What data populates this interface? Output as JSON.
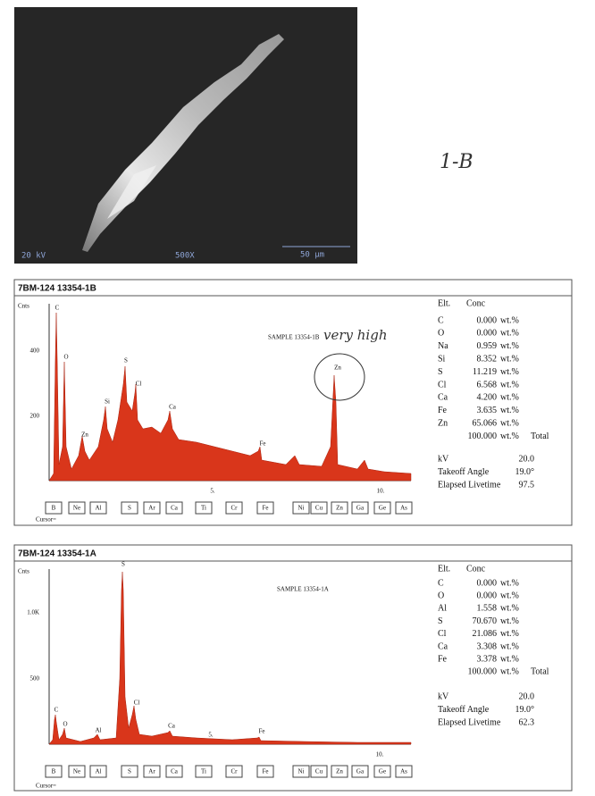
{
  "sem_image": {
    "voltage": "20 kV",
    "magnification": "500X",
    "scale": "50 µm"
  },
  "handwritten_label": "1-B",
  "spectra": [
    {
      "header": "7BM-124 13354-1B",
      "counts_label": "Cnts",
      "y_labels": [
        "400",
        "200"
      ],
      "x_labels": [
        "5.",
        "10."
      ],
      "sample_label": "SAMPLE 13354-1B",
      "annotation": "very high",
      "peak_labels": [
        "C",
        "O",
        "Zn",
        "Si",
        "S",
        "Cl",
        "Ca",
        "Fe",
        "Zn"
      ],
      "table": {
        "headers": [
          "Elt.",
          "Conc"
        ],
        "rows": [
          [
            "C",
            "0.000",
            "wt.%"
          ],
          [
            "O",
            "0.000",
            "wt.%"
          ],
          [
            "Na",
            "0.959",
            "wt.%"
          ],
          [
            "Si",
            "8.352",
            "wt.%"
          ],
          [
            "S",
            "11.219",
            "wt.%"
          ],
          [
            "Cl",
            "6.568",
            "wt.%"
          ],
          [
            "Ca",
            "4.200",
            "wt.%"
          ],
          [
            "Fe",
            "3.635",
            "wt.%"
          ],
          [
            "Zn",
            "65.066",
            "wt.%"
          ]
        ],
        "total": [
          "100.000",
          "wt.%",
          "Total"
        ]
      },
      "parameters": [
        [
          "kV",
          "20.0"
        ],
        [
          "Takeoff Angle",
          "19.0°"
        ],
        [
          "Elapsed Livetime",
          "97.5"
        ]
      ],
      "element_buttons": [
        "B",
        "Ne",
        "Al",
        "S",
        "Ar",
        "Ca",
        "Ti",
        "Cr",
        "Fe",
        "Ni",
        "Cu",
        "Zn",
        "Ga",
        "Ge",
        "As"
      ],
      "cursor": "Cursor="
    },
    {
      "header": "7BM-124 13354-1A",
      "counts_label": "Cnts",
      "y_labels": [
        "1.0K",
        "500"
      ],
      "x_labels": [
        "5.",
        "10."
      ],
      "sample_label": "SAMPLE 13354-1A",
      "peak_labels": [
        "C",
        "O",
        "Al",
        "S",
        "Cl",
        "Ca",
        "Fe"
      ],
      "table": {
        "headers": [
          "Elt.",
          "Conc"
        ],
        "rows": [
          [
            "C",
            "0.000",
            "wt.%"
          ],
          [
            "O",
            "0.000",
            "wt.%"
          ],
          [
            "Al",
            "1.558",
            "wt.%"
          ],
          [
            "S",
            "70.670",
            "wt.%"
          ],
          [
            "Cl",
            "21.086",
            "wt.%"
          ],
          [
            "Ca",
            "3.308",
            "wt.%"
          ],
          [
            "Fe",
            "3.378",
            "wt.%"
          ]
        ],
        "total": [
          "100.000",
          "wt.%",
          "Total"
        ]
      },
      "parameters": [
        [
          "kV",
          "20.0"
        ],
        [
          "Takeoff Angle",
          "19.0°"
        ],
        [
          "Elapsed Livetime",
          "62.3"
        ]
      ],
      "element_buttons": [
        "B",
        "Ne",
        "Al",
        "S",
        "Ar",
        "Ca",
        "Ti",
        "Cr",
        "Fe",
        "Ni",
        "Cu",
        "Zn",
        "Ga",
        "Ge",
        "As"
      ],
      "cursor": "Cursor="
    }
  ]
}
